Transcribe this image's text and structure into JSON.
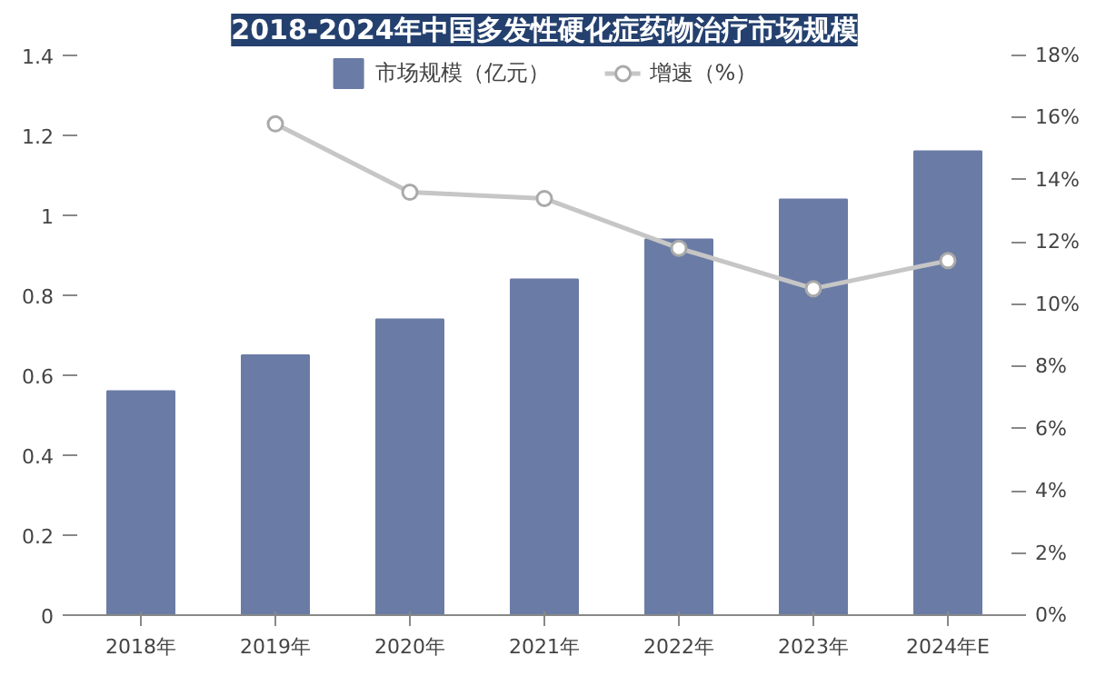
{
  "chart_data": {
    "type": "bar",
    "title": "2018-2024年中国多发性硬化症药物治疗市场规模",
    "categories": [
      "2018年",
      "2019年",
      "2020年",
      "2021年",
      "2022年",
      "2023年",
      "2024年E"
    ],
    "series": [
      {
        "name": "市场规模（亿元）",
        "color": "#6a7ca5",
        "values": [
          0.56,
          0.65,
          0.74,
          0.84,
          0.94,
          1.04,
          1.16
        ]
      },
      {
        "name": "增速（%）",
        "type": "line",
        "axis": "y2",
        "color": "#c6c6c6",
        "marker": "circle",
        "values": [
          null,
          15.8,
          13.6,
          13.4,
          11.8,
          10.5,
          11.4
        ]
      }
    ],
    "ylim": [
      0,
      1.4
    ],
    "yticks": [
      0,
      0.2,
      0.4,
      0.6,
      0.8,
      1,
      1.2,
      1.4
    ],
    "y2lim": [
      0,
      18
    ],
    "y2ticks": [
      {
        "value": 0,
        "label": "0%"
      },
      {
        "value": 2,
        "label": "2%"
      },
      {
        "value": 4,
        "label": "4%"
      },
      {
        "value": 6,
        "label": "6%"
      },
      {
        "value": 8,
        "label": "8%"
      },
      {
        "value": 10,
        "label": "10%"
      },
      {
        "value": 12,
        "label": "12%"
      },
      {
        "value": 14,
        "label": "14%"
      },
      {
        "value": 16,
        "label": "16%"
      },
      {
        "value": 18,
        "label": "18%"
      }
    ],
    "grid": false,
    "legend": "top"
  }
}
